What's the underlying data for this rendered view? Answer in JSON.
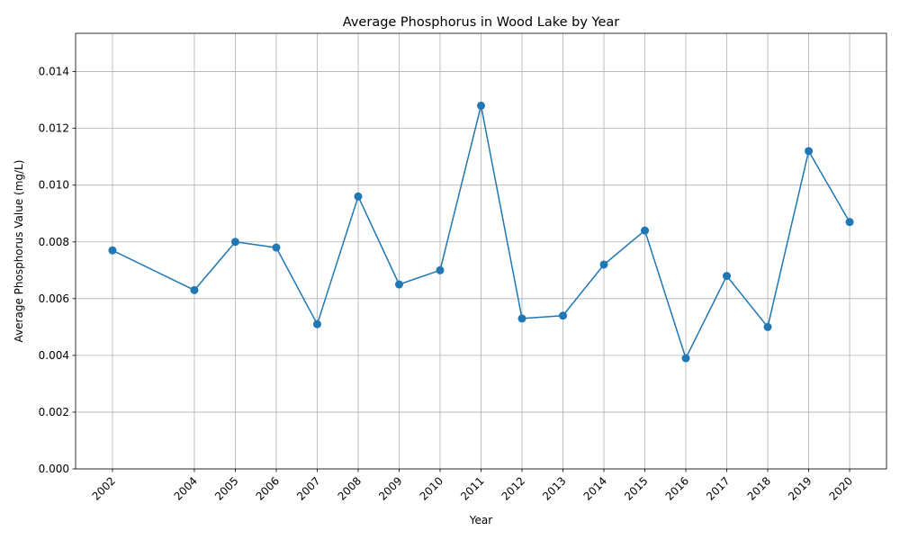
{
  "chart_data": {
    "type": "line",
    "title": "Average Phosphorus in Wood Lake by Year",
    "xlabel": "Year",
    "ylabel": "Average Phosphorus Value (mg/L)",
    "x": [
      2002,
      2004,
      2005,
      2006,
      2007,
      2008,
      2009,
      2010,
      2011,
      2012,
      2013,
      2014,
      2015,
      2016,
      2017,
      2018,
      2019,
      2020
    ],
    "series": [
      {
        "name": "",
        "values": [
          0.0077,
          0.0063,
          0.008,
          0.0078,
          0.0051,
          0.0096,
          0.0065,
          0.007,
          0.0128,
          0.0053,
          0.0054,
          0.0072,
          0.0084,
          0.0039,
          0.0068,
          0.005,
          0.0112,
          0.0087
        ]
      }
    ],
    "xlim": [
      2001.1,
      2020.9
    ],
    "ylim": [
      0,
      0.01535
    ],
    "y_ticks": [
      "0.000",
      "0.002",
      "0.004",
      "0.006",
      "0.008",
      "0.010",
      "0.012",
      "0.014"
    ],
    "x_ticks": [
      "2002",
      "2004",
      "2005",
      "2006",
      "2007",
      "2008",
      "2009",
      "2010",
      "2011",
      "2012",
      "2013",
      "2014",
      "2015",
      "2016",
      "2017",
      "2018",
      "2019",
      "2020"
    ],
    "grid": true,
    "line_color": "#1f77b4",
    "marker": "circle"
  }
}
